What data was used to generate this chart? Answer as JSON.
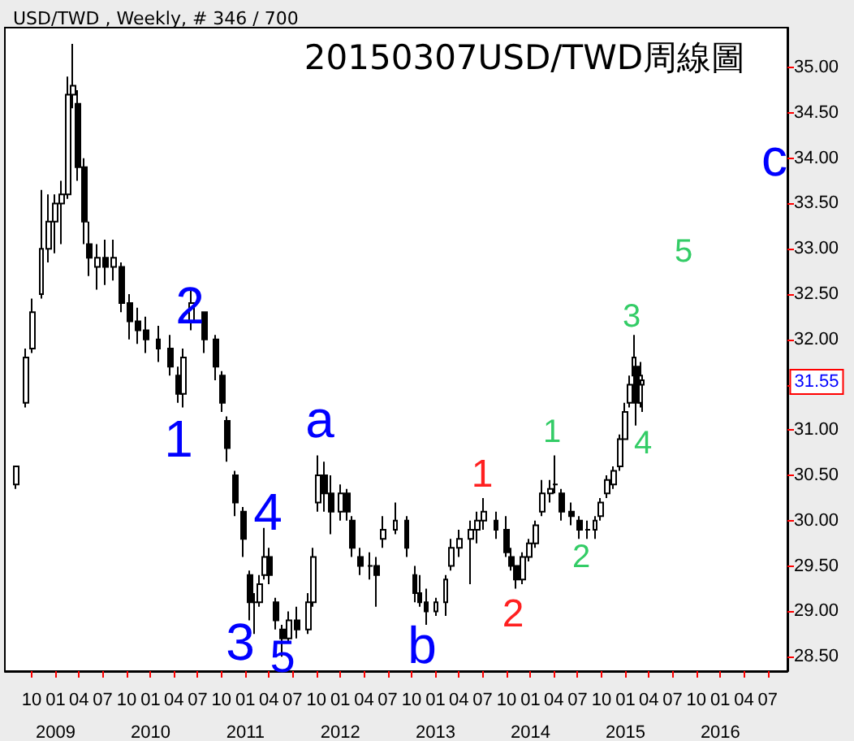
{
  "chart_data": {
    "type": "candlestick",
    "title": "20150307USD/TWD周線圖",
    "subtitle": "USD/TWD , Weekly, # 346 / 700",
    "x": [
      "2008-08-04",
      "2008-09-10",
      "2008-10-04",
      "2008-11-06",
      "2008-12-05",
      "2009-01-01",
      "2009-01-26",
      "2009-02-20",
      "2009-03-10",
      "2009-03-29",
      "2009-04-22",
      "2009-05-11",
      "2009-06-10",
      "2009-07-13",
      "2009-08-13",
      "2009-09-12",
      "2009-10-14",
      "2009-11-14",
      "2009-12-16",
      "2010-01-30",
      "2010-03-19",
      "2010-04-20",
      "2010-05-08",
      "2010-06-09",
      "2010-07-28",
      "2010-09-09",
      "2010-10-04",
      "2010-10-23",
      "2010-11-23",
      "2010-12-25",
      "2011-01-18",
      "2011-02-06",
      "2011-02-25",
      "2011-03-16",
      "2011-04-03",
      "2011-04-28",
      "2011-05-23",
      "2011-06-17",
      "2011-07-18",
      "2011-09-01",
      "2011-09-20",
      "2011-10-09",
      "2011-11-03",
      "2011-11-28",
      "2012-01-04",
      "2012-01-29",
      "2012-02-17",
      "2012-03-19",
      "2012-04-26",
      "2012-05-21",
      "2012-06-15",
      "2012-07-29",
      "2012-09-11",
      "2012-10-13",
      "2012-11-01",
      "2012-11-26",
      "2013-01-02",
      "2013-02-08",
      "2013-03-04",
      "2013-04-04",
      "2013-05-18",
      "2013-06-12",
      "2013-07-07",
      "2013-08-20",
      "2013-10-02",
      "2013-10-21",
      "2013-11-08",
      "2013-12-03",
      "2013-12-28",
      "2014-01-22",
      "2014-02-16",
      "2014-03-19",
      "2014-04-07",
      "2014-05-02",
      "2014-06-08",
      "2014-07-09",
      "2014-08-09",
      "2014-09-05",
      "2014-09-28",
      "2014-10-23",
      "2014-11-17",
      "2014-12-12",
      "2015-01-01",
      "2015-01-19",
      "2015-02-02",
      "2015-02-13",
      "2015-02-27",
      "2015-03-06"
    ],
    "ohlc": [
      [
        30.4,
        30.6,
        30.35,
        30.6
      ],
      [
        31.3,
        31.9,
        31.25,
        31.8
      ],
      [
        31.9,
        32.45,
        31.85,
        32.3
      ],
      [
        32.5,
        33.65,
        32.45,
        33.0
      ],
      [
        33.0,
        33.6,
        32.85,
        33.3
      ],
      [
        33.3,
        33.6,
        32.95,
        33.5
      ],
      [
        33.5,
        33.75,
        33.05,
        33.6
      ],
      [
        33.6,
        34.9,
        33.55,
        34.7
      ],
      [
        34.7,
        35.26,
        34.55,
        34.8
      ],
      [
        34.6,
        34.75,
        33.75,
        33.9
      ],
      [
        33.9,
        34.0,
        33.05,
        33.3
      ],
      [
        33.05,
        33.3,
        32.7,
        32.9
      ],
      [
        32.8,
        33.05,
        32.55,
        32.9
      ],
      [
        32.9,
        33.1,
        32.6,
        32.8
      ],
      [
        32.8,
        33.1,
        32.65,
        32.9
      ],
      [
        32.8,
        32.85,
        32.3,
        32.4
      ],
      [
        32.4,
        32.5,
        32.0,
        32.2
      ],
      [
        32.2,
        32.35,
        31.95,
        32.1
      ],
      [
        32.1,
        32.25,
        31.85,
        32.0
      ],
      [
        32.0,
        32.15,
        31.75,
        31.9
      ],
      [
        31.9,
        32.05,
        31.6,
        31.7
      ],
      [
        31.6,
        31.7,
        31.3,
        31.4
      ],
      [
        31.4,
        31.9,
        31.25,
        31.8
      ],
      [
        32.2,
        32.55,
        32.1,
        32.4
      ],
      [
        32.3,
        32.3,
        31.85,
        32.0
      ],
      [
        32.0,
        32.05,
        31.55,
        31.7
      ],
      [
        31.6,
        31.65,
        31.2,
        31.3
      ],
      [
        31.1,
        31.15,
        30.65,
        30.8
      ],
      [
        30.5,
        30.55,
        30.05,
        30.2
      ],
      [
        30.1,
        30.15,
        29.6,
        29.8
      ],
      [
        29.4,
        29.45,
        28.9,
        29.1
      ],
      [
        29.1,
        29.2,
        28.75,
        29.1
      ],
      [
        29.1,
        29.4,
        29.05,
        29.3
      ],
      [
        29.4,
        29.92,
        29.35,
        29.6
      ],
      [
        29.6,
        29.7,
        29.3,
        29.4
      ],
      [
        29.1,
        29.15,
        28.8,
        28.9
      ],
      [
        28.8,
        28.85,
        28.5,
        28.7
      ],
      [
        28.7,
        29.0,
        28.65,
        28.9
      ],
      [
        28.9,
        29.05,
        28.7,
        28.8
      ],
      [
        28.8,
        29.2,
        28.75,
        29.1
      ],
      [
        29.1,
        29.7,
        29.05,
        29.6
      ],
      [
        30.2,
        30.72,
        30.1,
        30.5
      ],
      [
        30.5,
        30.65,
        30.1,
        30.3
      ],
      [
        30.3,
        30.5,
        29.85,
        30.1
      ],
      [
        30.1,
        30.4,
        30.0,
        30.3
      ],
      [
        30.3,
        30.35,
        30.0,
        30.1
      ],
      [
        30.0,
        30.05,
        29.6,
        29.7
      ],
      [
        29.6,
        29.7,
        29.4,
        29.5
      ],
      [
        29.5,
        29.65,
        29.35,
        29.5
      ],
      [
        29.5,
        29.6,
        29.05,
        29.4
      ],
      [
        29.8,
        30.05,
        29.7,
        29.9
      ],
      [
        29.9,
        30.2,
        29.85,
        30.0
      ],
      [
        30.0,
        30.05,
        29.6,
        29.7
      ],
      [
        29.4,
        29.5,
        29.1,
        29.2
      ],
      [
        29.2,
        29.4,
        29.05,
        29.1
      ],
      [
        29.1,
        29.25,
        28.85,
        29.0
      ],
      [
        29.0,
        29.15,
        28.95,
        29.1
      ],
      [
        29.1,
        29.4,
        28.95,
        29.35
      ],
      [
        29.5,
        29.8,
        29.45,
        29.7
      ],
      [
        29.7,
        29.9,
        29.6,
        29.8
      ],
      [
        29.8,
        30.0,
        29.3,
        29.9
      ],
      [
        29.9,
        30.1,
        29.75,
        30.0
      ],
      [
        30.0,
        30.25,
        29.9,
        30.1
      ],
      [
        30.0,
        30.1,
        29.8,
        29.9
      ],
      [
        29.9,
        30.05,
        29.6,
        29.65
      ],
      [
        29.6,
        29.7,
        29.45,
        29.5
      ],
      [
        29.5,
        29.5,
        29.25,
        29.35
      ],
      [
        29.35,
        29.65,
        29.3,
        29.6
      ],
      [
        29.6,
        29.8,
        29.55,
        29.75
      ],
      [
        29.75,
        30.0,
        29.7,
        29.95
      ],
      [
        30.1,
        30.45,
        30.05,
        30.3
      ],
      [
        30.3,
        30.45,
        30.2,
        30.35
      ],
      [
        30.4,
        30.72,
        30.3,
        30.4
      ],
      [
        30.3,
        30.35,
        30.0,
        30.1
      ],
      [
        30.1,
        30.2,
        29.95,
        30.05
      ],
      [
        30.0,
        30.05,
        29.8,
        29.9
      ],
      [
        29.9,
        30.0,
        29.8,
        29.9
      ],
      [
        29.9,
        30.05,
        29.8,
        30.0
      ],
      [
        30.05,
        30.25,
        30.0,
        30.2
      ],
      [
        30.3,
        30.5,
        30.25,
        30.45
      ],
      [
        30.4,
        30.6,
        30.35,
        30.55
      ],
      [
        30.6,
        30.95,
        30.55,
        30.9
      ],
      [
        30.9,
        31.3,
        30.9,
        31.2
      ],
      [
        31.3,
        31.6,
        31.25,
        31.5
      ],
      [
        31.6,
        32.05,
        31.5,
        31.8
      ],
      [
        31.7,
        31.75,
        31.05,
        31.3
      ],
      [
        31.3,
        31.75,
        31.25,
        31.6
      ],
      [
        31.5,
        31.6,
        31.2,
        31.55
      ]
    ],
    "color": "#000000",
    "xlim": [
      "2008-06-20",
      "2016-09-15"
    ],
    "xticks": [
      {
        "value": "2008-10",
        "label": "10"
      },
      {
        "value": "2009-01",
        "label": "01\n2009"
      },
      {
        "value": "2009-04",
        "label": "04"
      },
      {
        "value": "2009-07",
        "label": "07"
      },
      {
        "value": "2009-10",
        "label": "10"
      },
      {
        "value": "2010-01",
        "label": "01\n2010"
      },
      {
        "value": "2010-04",
        "label": "04"
      },
      {
        "value": "2010-07",
        "label": "07"
      },
      {
        "value": "2010-10",
        "label": "10"
      },
      {
        "value": "2011-01",
        "label": "01\n2011"
      },
      {
        "value": "2011-04",
        "label": "04"
      },
      {
        "value": "2011-07",
        "label": "07"
      },
      {
        "value": "2011-10",
        "label": "10"
      },
      {
        "value": "2012-01",
        "label": "01\n2012"
      },
      {
        "value": "2012-04",
        "label": "04"
      },
      {
        "value": "2012-07",
        "label": "07"
      },
      {
        "value": "2012-10",
        "label": "10"
      },
      {
        "value": "2013-01",
        "label": "01\n2013"
      },
      {
        "value": "2013-04",
        "label": "04"
      },
      {
        "value": "2013-07",
        "label": "07"
      },
      {
        "value": "2013-10",
        "label": "10"
      },
      {
        "value": "2014-01",
        "label": "01\n2014"
      },
      {
        "value": "2014-04",
        "label": "04"
      },
      {
        "value": "2014-07",
        "label": "07"
      },
      {
        "value": "2014-10",
        "label": "10"
      },
      {
        "value": "2015-01",
        "label": "01\n2015"
      },
      {
        "value": "2015-04",
        "label": "04"
      },
      {
        "value": "2015-07",
        "label": "07"
      },
      {
        "value": "2015-10",
        "label": "10"
      },
      {
        "value": "2016-01",
        "label": "01\n2016"
      },
      {
        "value": "2016-04",
        "label": "04"
      },
      {
        "value": "2016-07",
        "label": "07"
      }
    ],
    "ylim": [
      28.34,
      35.44
    ],
    "yticks": [
      {
        "value": 28.5,
        "label": "28.50"
      },
      {
        "value": 29,
        "label": "29.00"
      },
      {
        "value": 29.5,
        "label": "29.50"
      },
      {
        "value": 30,
        "label": "30.00"
      },
      {
        "value": 30.5,
        "label": "30.50"
      },
      {
        "value": 31,
        "label": "31.00"
      },
      {
        "value": 31.5,
        "label": null
      },
      {
        "value": 32,
        "label": "32.00"
      },
      {
        "value": 32.5,
        "label": "32.50"
      },
      {
        "value": 33,
        "label": "33.00"
      },
      {
        "value": 33.5,
        "label": "33.50"
      },
      {
        "value": 34,
        "label": "34.00"
      },
      {
        "value": 34.5,
        "label": "34.50"
      },
      {
        "value": 35,
        "label": "35.00"
      }
    ],
    "annotations": [
      "2",
      "1",
      "3",
      "4",
      "5",
      "a",
      "b",
      "c",
      "1",
      "2",
      "1",
      "2",
      "3",
      "4",
      "5",
      "31.55"
    ]
  }
}
